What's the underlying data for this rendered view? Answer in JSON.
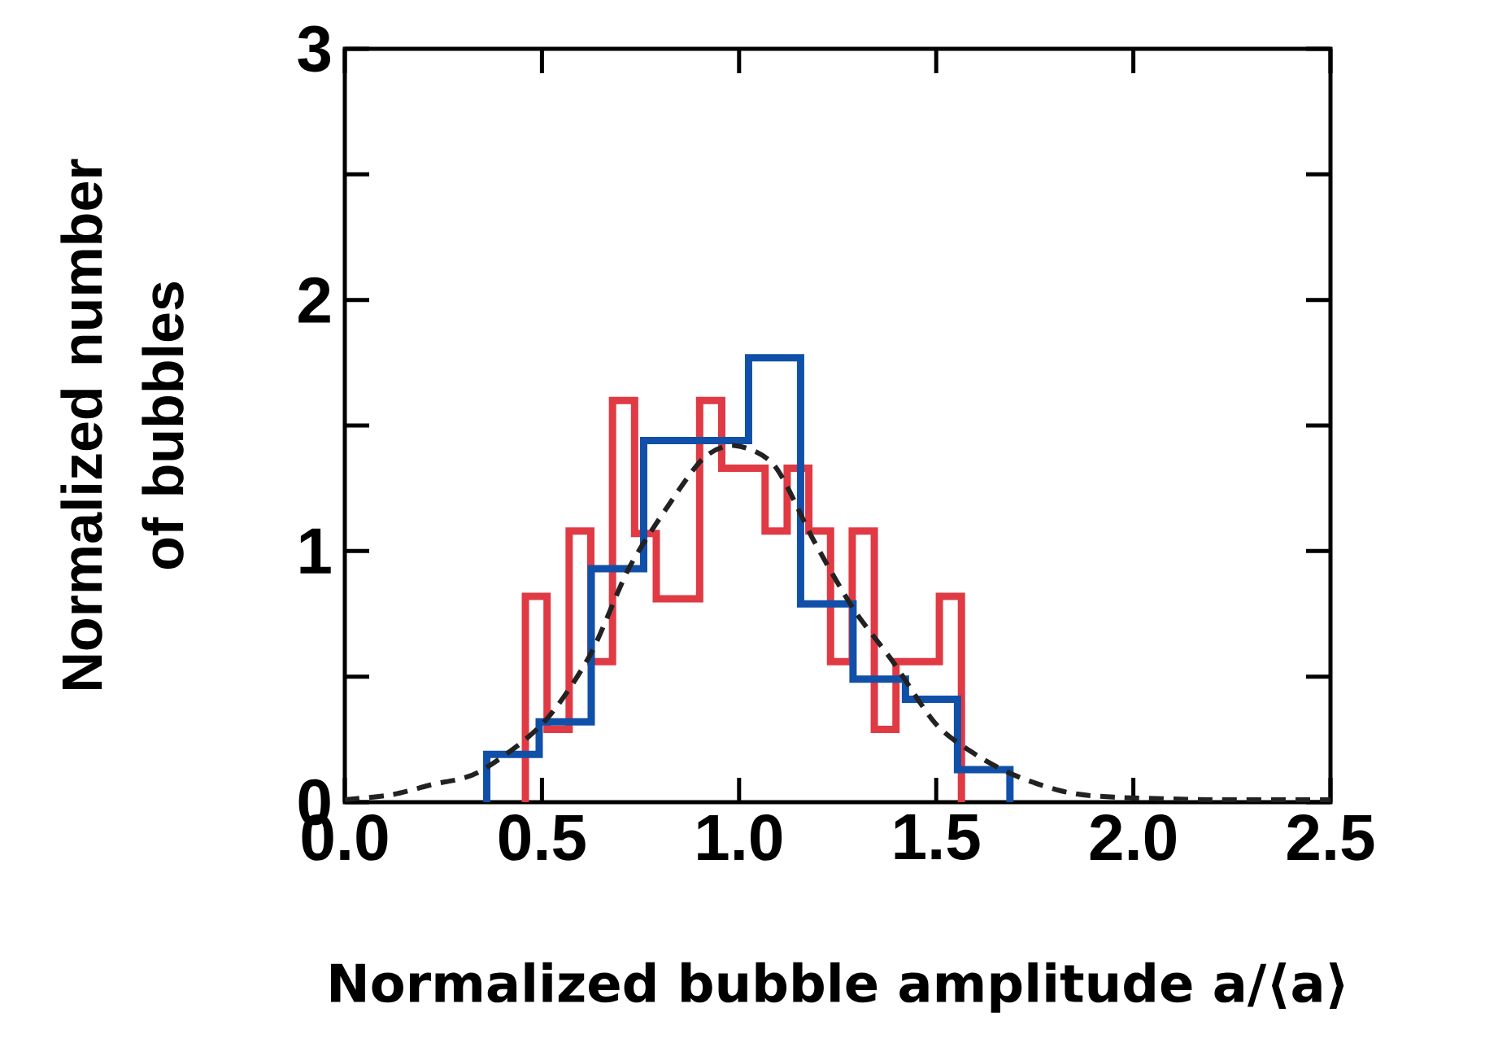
{
  "chart_data": {
    "type": "histogram",
    "xlabel": "Normalized bubble amplitude a/⟨a⟩",
    "ylabel": "Normalized number of bubbles",
    "xlim": [
      0,
      2.5
    ],
    "ylim": [
      0,
      3
    ],
    "xticks": [
      {
        "value": 0,
        "label": "0.0"
      },
      {
        "value": 0.5,
        "label": "0.5"
      },
      {
        "value": 1,
        "label": "1.0"
      },
      {
        "value": 1.5,
        "label": "1.5"
      },
      {
        "value": 2,
        "label": "2.0"
      },
      {
        "value": 2.5,
        "label": "2.5"
      }
    ],
    "yticks": [
      0,
      {
        "value": 0.5,
        "label": null
      },
      1,
      {
        "value": 1.5,
        "label": null
      },
      2,
      {
        "value": 2.5,
        "label": null
      },
      3
    ],
    "series": [
      {
        "color": "#e03a44",
        "bins": [
          0.458,
          0.513,
          0.569,
          0.624,
          0.679,
          0.735,
          0.79,
          0.845,
          0.9,
          0.956,
          1.011,
          1.066,
          1.122,
          1.177,
          1.232,
          1.287,
          1.343,
          1.398,
          1.453,
          1.508,
          1.564
        ],
        "values": [
          0.82,
          0.29,
          1.08,
          0.56,
          1.6,
          1.07,
          0.81,
          0.81,
          1.6,
          1.33,
          1.33,
          1.08,
          1.33,
          1.08,
          0.56,
          1.08,
          0.29,
          0.56,
          0.56,
          0.82
        ]
      },
      {
        "color": "#1150a8",
        "bins": [
          0.36,
          0.493,
          0.625,
          0.758,
          0.891,
          1.024,
          1.156,
          1.289,
          1.422,
          1.554,
          1.687
        ],
        "values": [
          0.19,
          0.32,
          0.93,
          1.44,
          1.44,
          1.77,
          0.79,
          0.49,
          0.41,
          0.13
        ]
      },
      {
        "type": "line",
        "color": "#222222",
        "line_style": "dashed",
        "x": [
          0,
          0.12,
          0.22,
          0.34,
          0.5,
          0.62,
          0.72,
          0.82,
          0.91,
          0.99,
          1.09,
          1.19,
          1.29,
          1.39,
          1.5,
          1.61,
          1.71,
          1.83,
          1.95,
          2.2,
          2.5
        ],
        "values": [
          0.01,
          0.03,
          0.07,
          0.12,
          0.31,
          0.58,
          0.93,
          1.18,
          1.37,
          1.42,
          1.34,
          1.04,
          0.77,
          0.56,
          0.31,
          0.18,
          0.1,
          0.04,
          0.02,
          0.01,
          0.01
        ]
      }
    ]
  }
}
